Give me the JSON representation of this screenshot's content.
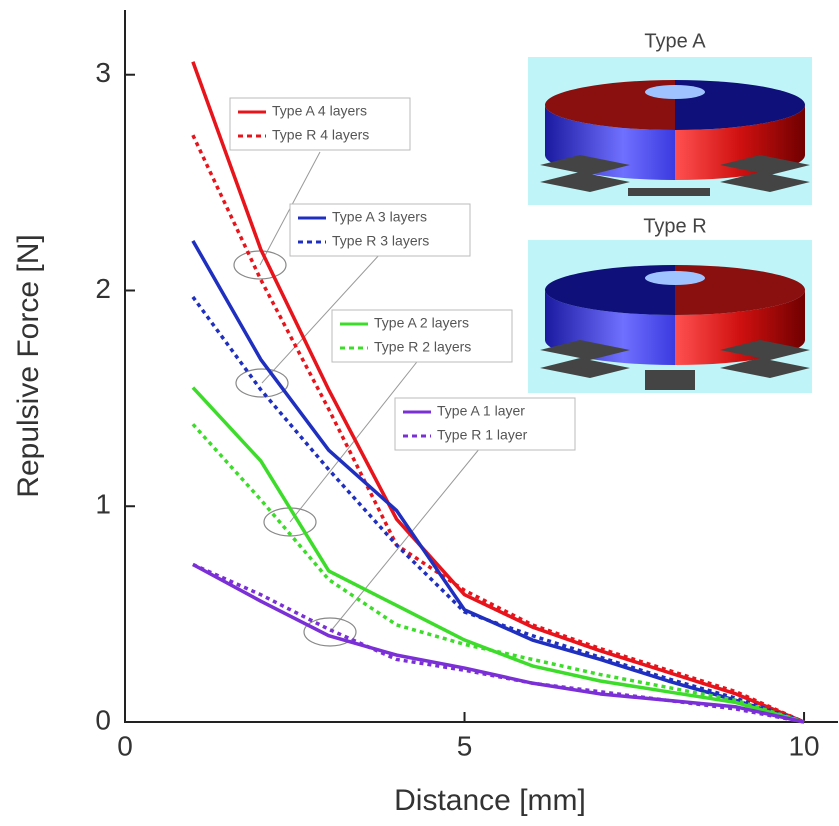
{
  "chart_data": {
    "type": "line",
    "x_label": "Distance [mm]",
    "y_label": "Repulsive Force [N]",
    "annotations": [
      "Type A",
      "Type R"
    ],
    "x": [
      1,
      2,
      3,
      4,
      5,
      6,
      7,
      8,
      9,
      10
    ],
    "series": [
      {
        "name": "Type A 4 layers",
        "color": "#e8141b",
        "dash": false,
        "values": [
          3.06,
          2.19,
          1.54,
          0.94,
          0.59,
          0.44,
          0.33,
          0.23,
          0.13,
          0
        ]
      },
      {
        "name": "Type R 4 layers",
        "color": "#e8141b",
        "dash": true,
        "values": [
          2.72,
          2.05,
          1.45,
          0.82,
          0.61,
          0.45,
          0.34,
          0.24,
          0.14,
          0
        ]
      },
      {
        "name": "Type A 3 layers",
        "color": "#1f2fbf",
        "dash": false,
        "values": [
          2.23,
          1.68,
          1.26,
          0.98,
          0.52,
          0.38,
          0.29,
          0.19,
          0.1,
          0
        ]
      },
      {
        "name": "Type R 3 layers",
        "color": "#1f2fbf",
        "dash": true,
        "values": [
          1.97,
          1.54,
          1.17,
          0.82,
          0.51,
          0.4,
          0.3,
          0.2,
          0.11,
          0
        ]
      },
      {
        "name": "Type A 2 layers",
        "color": "#3ddc2a",
        "dash": false,
        "values": [
          1.55,
          1.21,
          0.7,
          0.54,
          0.38,
          0.26,
          0.19,
          0.14,
          0.09,
          0
        ]
      },
      {
        "name": "Type R 2 layers",
        "color": "#3ddc2a",
        "dash": true,
        "values": [
          1.38,
          1.03,
          0.66,
          0.45,
          0.36,
          0.29,
          0.22,
          0.16,
          0.1,
          0
        ]
      },
      {
        "name": "Type A 1 layer",
        "color": "#7b2fd6",
        "dash": false,
        "values": [
          0.73,
          0.56,
          0.4,
          0.31,
          0.25,
          0.18,
          0.13,
          0.1,
          0.07,
          0
        ]
      },
      {
        "name": "Type R 1 layer",
        "color": "#7b2fd6",
        "dash": true,
        "values": [
          0.73,
          0.59,
          0.43,
          0.29,
          0.24,
          0.18,
          0.14,
          0.1,
          0.06,
          0
        ]
      }
    ],
    "xlim": [
      0,
      10.5
    ],
    "ylim": [
      0,
      3.3
    ],
    "xticks": [
      0,
      5,
      10
    ],
    "yticks": [
      0,
      1,
      2,
      3
    ],
    "grid": false
  }
}
